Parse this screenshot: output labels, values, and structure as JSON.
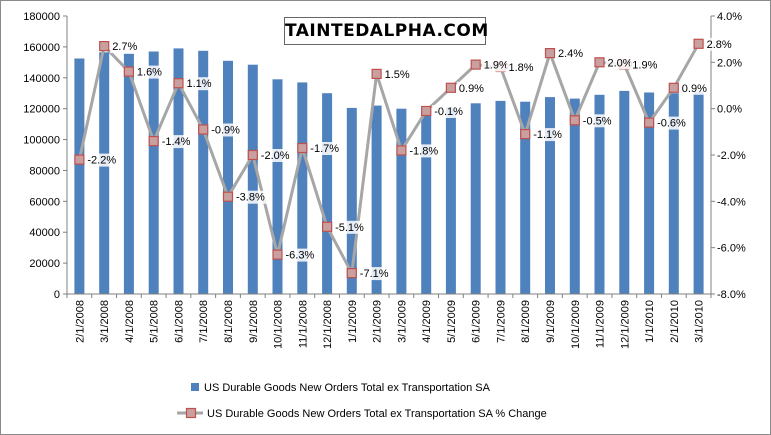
{
  "logo": {
    "text": "TAINTEDALPHA.COM"
  },
  "chart_data": {
    "type": "bar",
    "categories": [
      "2/1/2008",
      "3/1/2008",
      "4/1/2008",
      "5/1/2008",
      "6/1/2008",
      "7/1/2008",
      "8/1/2008",
      "9/1/2008",
      "10/1/2008",
      "11/1/2008",
      "12/1/2008",
      "1/1/2009",
      "2/1/2009",
      "3/1/2009",
      "4/1/2009",
      "5/1/2009",
      "6/1/2009",
      "7/1/2009",
      "8/1/2009",
      "9/1/2009",
      "10/1/2009",
      "11/1/2009",
      "12/1/2009",
      "1/1/2010",
      "2/1/2010",
      "3/1/2010"
    ],
    "series": [
      {
        "name": "US Durable Goods New Orders Total  ex Transportation  SA",
        "type": "bar",
        "axis": "left",
        "color": "#4f81bd",
        "values": [
          152500,
          156500,
          155500,
          157000,
          159000,
          157500,
          151000,
          148500,
          139000,
          137000,
          130000,
          120500,
          122000,
          120000,
          120000,
          121000,
          123500,
          125000,
          124500,
          127500,
          126500,
          129000,
          131500,
          130500,
          130000,
          131000
        ]
      },
      {
        "name": "US Durable Goods New Orders Total  ex Transportation  SA % Change",
        "type": "line",
        "axis": "right",
        "color": "#a6a6a6",
        "marker_color": "#c0504d",
        "values": [
          -2.2,
          2.7,
          1.6,
          -1.4,
          1.1,
          -0.9,
          -3.8,
          -2.0,
          -6.3,
          -1.7,
          -5.1,
          -7.1,
          1.5,
          -1.8,
          -0.1,
          0.9,
          1.9,
          1.8,
          -1.1,
          2.4,
          -0.5,
          2.0,
          1.9,
          -0.6,
          0.9,
          2.8
        ],
        "labels": [
          "-2.2%",
          "2.7%",
          "1.6%",
          "-1.4%",
          "1.1%",
          "-0.9%",
          "-3.8%",
          "-2.0%",
          "-6.3%",
          "-1.7%",
          "-5.1%",
          "-7.1%",
          "1.5%",
          "-1.8%",
          "-0.1%",
          "0.9%",
          "1.9%",
          "1.8%",
          "-1.1%",
          "2.4%",
          "-0.5%",
          "2.0%",
          "1.9%",
          "-0.6%",
          "0.9%",
          "2.8%"
        ]
      }
    ],
    "left_axis": {
      "min": 0,
      "max": 180000,
      "step": 20000,
      "tick_labels": [
        "0",
        "20000",
        "40000",
        "60000",
        "80000",
        "100000",
        "120000",
        "140000",
        "160000",
        "180000"
      ]
    },
    "right_axis": {
      "min": -8.0,
      "max": 4.0,
      "step": 2.0,
      "tick_labels": [
        "-8.0%",
        "-6.0%",
        "-4.0%",
        "-2.0%",
        "0.0%",
        "2.0%",
        "4.0%"
      ]
    },
    "title": "",
    "xlabel": "",
    "ylabel": "",
    "legend_position": "bottom",
    "grid": false
  }
}
